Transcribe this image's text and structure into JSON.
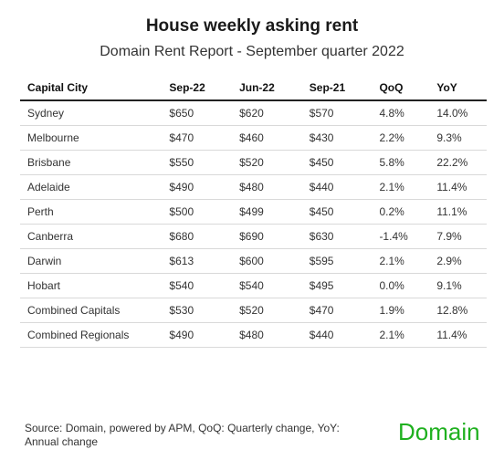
{
  "chart_data": {
    "type": "table",
    "title": "House weekly asking rent",
    "subtitle": "Domain Rent Report - September quarter 2022",
    "columns": [
      "Capital City",
      "Sep-22",
      "Jun-22",
      "Sep-21",
      "QoQ",
      "YoY"
    ],
    "rows": [
      [
        "Sydney",
        "$650",
        "$620",
        "$570",
        "4.8%",
        "14.0%"
      ],
      [
        "Melbourne",
        "$470",
        "$460",
        "$430",
        "2.2%",
        "9.3%"
      ],
      [
        "Brisbane",
        "$550",
        "$520",
        "$450",
        "5.8%",
        "22.2%"
      ],
      [
        "Adelaide",
        "$490",
        "$480",
        "$440",
        "2.1%",
        "11.4%"
      ],
      [
        "Perth",
        "$500",
        "$499",
        "$450",
        "0.2%",
        "11.1%"
      ],
      [
        "Canberra",
        "$680",
        "$690",
        "$630",
        "-1.4%",
        "7.9%"
      ],
      [
        "Darwin",
        "$613",
        "$600",
        "$595",
        "2.1%",
        "2.9%"
      ],
      [
        "Hobart",
        "$540",
        "$540",
        "$495",
        "0.0%",
        "9.1%"
      ],
      [
        "Combined Capitals",
        "$530",
        "$520",
        "$470",
        "1.9%",
        "12.8%"
      ],
      [
        "Combined Regionals",
        "$490",
        "$480",
        "$440",
        "2.1%",
        "11.4%"
      ]
    ]
  },
  "footer": {
    "source": "Source: Domain, powered by APM, QoQ: Quarterly change, YoY: Annual change",
    "logo": "Domain"
  },
  "colors": {
    "brand": "#1fb01f"
  }
}
